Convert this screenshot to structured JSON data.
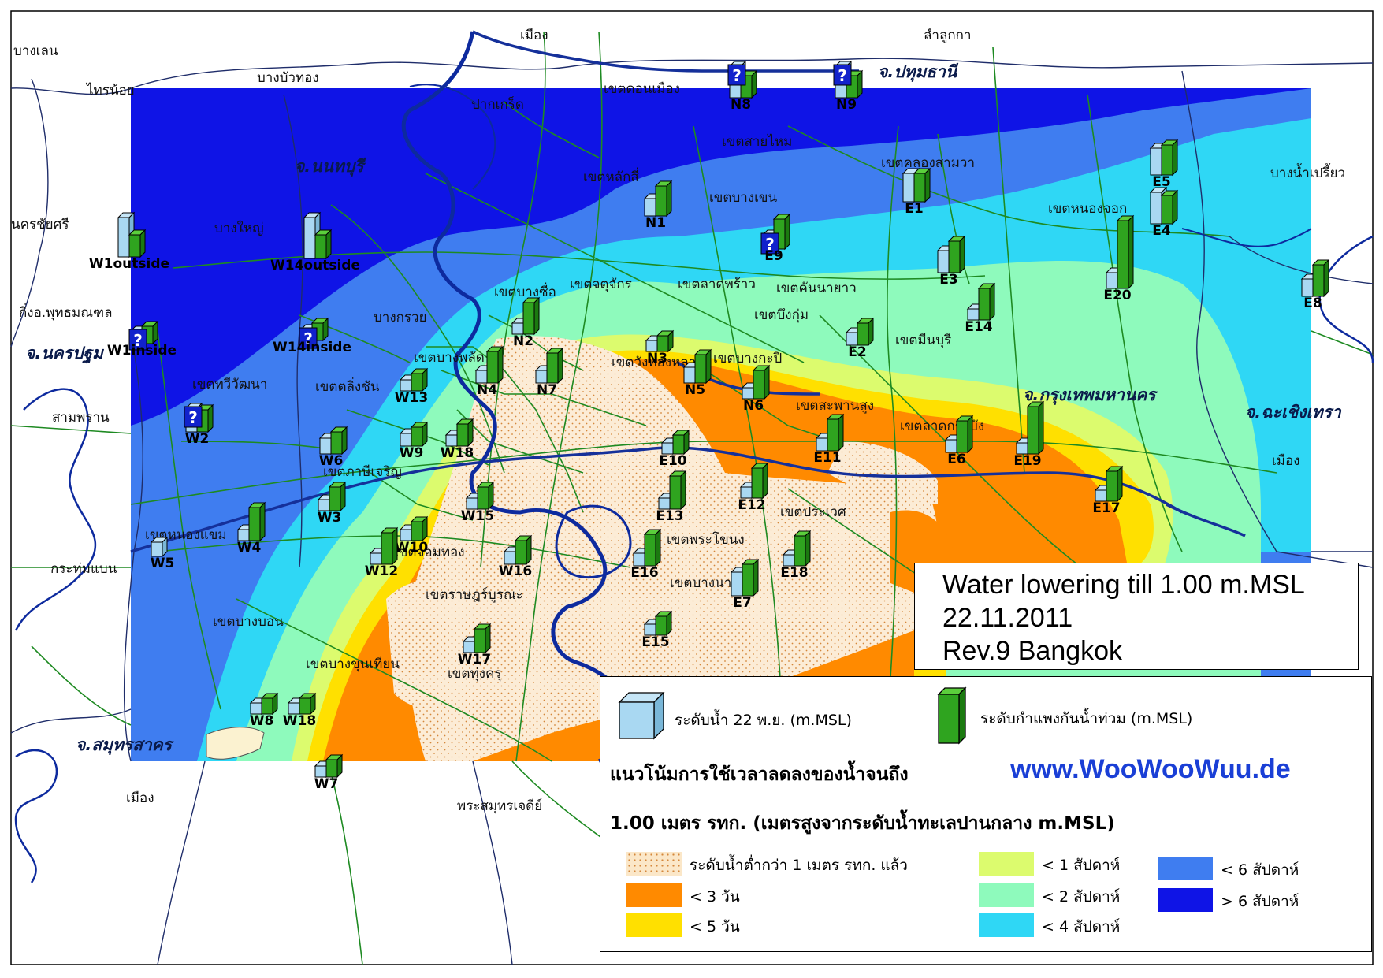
{
  "title": {
    "line1": "Water lowering till 1.00 m.MSL",
    "line2": "22.11.2011",
    "line3": "Rev.9 Bangkok"
  },
  "legend": {
    "water_level": "ระดับน้ำ 22 พ.ย. (m.MSL)",
    "wall_level": "ระดับกำแพงกันน้ำท่วม (m.MSL)",
    "heading1": "แนวโน้มการใช้เวลาลดลงของน้ำจนถึง",
    "heading2": "1.00 เมตร รทก. (เมตรสูงจากระดับน้ำทะเลปานกลาง m.MSL)",
    "website": "www.WooWooWuu.de",
    "classes": [
      {
        "label": "ระดับน้ำต่ำกว่า 1 เมตร รทก. แล้ว",
        "color": "#fbe7c8"
      },
      {
        "label": "< 3 วัน",
        "color": "#ff8a00"
      },
      {
        "label": "< 5 วัน",
        "color": "#ffe000"
      },
      {
        "label": "< 1 สัปดาห์",
        "color": "#dcfb6e"
      },
      {
        "label": "< 2 สัปดาห์",
        "color": "#8efabc"
      },
      {
        "label": "< 4 สัปดาห์",
        "color": "#2fd7f5"
      },
      {
        "label": "< 6 สัปดาห์",
        "color": "#3f7df0"
      },
      {
        "label": "> 6 สัปดาห์",
        "color": "#0f14e6"
      }
    ]
  },
  "provinces": [
    "จ.ปทุมธานี",
    "จ.นนทบุรี",
    "จ.นครปฐม",
    "จ.กรุงเทพมหานคร",
    "จ.ฉะเชิงเทรา",
    "จ.สมุทรสาคร"
  ],
  "place_labels": [
    "บางเลน",
    "ไทรน้อย",
    "บางบัวทอง",
    "ลำลูกกา",
    "นครชัยศรี",
    "บางใหญ่",
    "กิ่งอ.พุทธมณฑล",
    "สามพราน",
    "กระทุ่มแบน",
    "บางน้ำเปรี้ยว",
    "เมือง",
    "เมือง",
    "พระสมุทรเจดีย์",
    "เมือง",
    "เขตสายไหม",
    "เขตบางเขน",
    "เขตคลองสามวา",
    "เขตหนองจอก",
    "เขตมีนบุรี",
    "เขตสะพานสูง",
    "เขตลาดกระบัง",
    "เขตประเวศ",
    "เขตบางนา",
    "เขตพระโขนง",
    "เขตบางบอน",
    "เขตบางขุนเทียน",
    "เขตทุ่งครุ",
    "เขตราษฎร์บูรณะ",
    "เขตจอมทอง",
    "เขตภาษีเจริญ",
    "เขตหนองแขม",
    "เขตทวีวัฒนา",
    "เขตตลิ่งชัน",
    "เขตบางพลัด",
    "เขตบางซื่อ",
    "เขตจตุจักร",
    "เขตลาดพร้าว",
    "เขตบึงกุ่ม",
    "เขตคันนายาว",
    "เขตวังทองหลาง",
    "เขตบางกะปิ",
    "เขตดอนเมือง",
    "เขตหลักสี่",
    "บางกรวย",
    "ปากเกร็ด"
  ],
  "stations": {
    "labels": [
      "N8",
      "N9",
      "N1",
      "E9",
      "E1",
      "E5",
      "E4",
      "E3",
      "E8",
      "W1outside",
      "W14outside",
      "W1inside",
      "W14inside",
      "N2",
      "N3",
      "E2",
      "E14",
      "E20",
      "W13",
      "N4",
      "N7",
      "N5",
      "N6",
      "W2",
      "W9",
      "W18",
      "W6",
      "E10",
      "E11",
      "E6",
      "E19",
      "W3",
      "W15",
      "E13",
      "E12",
      "E17",
      "W4",
      "W10",
      "W5",
      "W12",
      "W16",
      "E16",
      "E18",
      "E7",
      "E15",
      "W17",
      "W8",
      "W18",
      "W7"
    ],
    "unknown_mark": "?"
  },
  "colors": {
    "very_long": "#0f14e6",
    "long": "#3f7df0",
    "medium": "#2fd7f5",
    "short_weeks": "#8efabc",
    "week": "#dcfb6e",
    "five_days": "#ffe000",
    "three_days": "#ff8a00",
    "dry": "#fbe7c8",
    "roads": "#1e8a22",
    "rivers": "#0d2a9e",
    "boundaries": "#1f2d6a"
  }
}
